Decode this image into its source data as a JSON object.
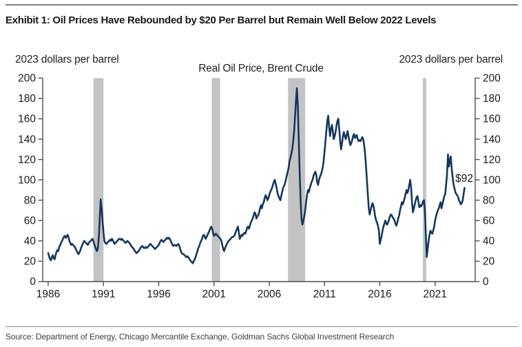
{
  "header": {
    "title": "Exhibit 1: Oil Prices Have Rebounded by $20 Per Barrel but Remain Well Below 2022 Levels"
  },
  "chart": {
    "title": "Real Oil Price, Brent Crude",
    "left_axis_title": "2023 dollars per barrel",
    "right_axis_title": "2023 dollars per barrel",
    "end_annotation": "$92"
  },
  "footer": {
    "source": "Source: Department of Energy, Chicago Mercantile Exchange, Goldman Sachs Global Investment Research"
  },
  "chart_data": {
    "type": "line",
    "title": "Real Oil Price, Brent Crude",
    "xlabel": "",
    "ylabel": "2023 dollars per barrel",
    "ylim": [
      0,
      200
    ],
    "ytick_step": 20,
    "xticks": [
      1986,
      1991,
      1996,
      2001,
      2006,
      2011,
      2016,
      2021
    ],
    "x_start_year": 1986,
    "x_step_months": 1,
    "line_color": "#14375c",
    "band_color": "#c3c3c3",
    "axis_color": "#4d4d4d",
    "tick_label_color": "#1a1a1a",
    "recession_bands": [
      [
        1990.1,
        1991.0
      ],
      [
        2000.8,
        2001.55
      ],
      [
        2007.7,
        2009.25
      ],
      [
        2019.9,
        2020.2
      ]
    ],
    "end_label": {
      "text": "$92",
      "value": 92
    },
    "values": [
      28,
      25,
      22,
      21,
      24,
      26,
      23,
      22,
      26,
      29,
      31,
      30,
      34,
      36,
      38,
      40,
      42,
      44,
      45,
      43,
      44,
      46,
      44,
      40,
      38,
      36,
      37,
      36,
      35,
      34,
      32,
      30,
      28,
      27,
      29,
      31,
      34,
      36,
      38,
      40,
      39,
      38,
      37,
      36,
      38,
      39,
      40,
      41,
      42,
      40,
      37,
      34,
      32,
      30,
      33,
      45,
      62,
      81,
      72,
      60,
      48,
      40,
      38,
      37,
      38,
      39,
      40,
      41,
      40,
      42,
      41,
      39,
      37,
      38,
      39,
      40,
      41,
      42,
      42,
      41,
      42,
      41,
      40,
      39,
      38,
      39,
      40,
      39,
      38,
      37,
      35,
      34,
      33,
      32,
      30,
      29,
      28,
      29,
      30,
      31,
      33,
      34,
      35,
      34,
      33,
      33,
      34,
      33,
      34,
      35,
      36,
      37,
      36,
      35,
      34,
      33,
      32,
      33,
      34,
      35,
      36,
      38,
      40,
      41,
      40,
      39,
      40,
      41,
      42,
      43,
      42,
      43,
      42,
      40,
      38,
      36,
      35,
      36,
      36,
      35,
      36,
      37,
      36,
      33,
      30,
      28,
      27,
      27,
      26,
      25,
      24,
      25,
      24,
      23,
      21,
      20,
      19,
      18,
      20,
      22,
      24,
      27,
      30,
      33,
      35,
      38,
      40,
      42,
      45,
      46,
      44,
      42,
      44,
      46,
      48,
      50,
      52,
      54,
      52,
      48,
      45,
      46,
      47,
      46,
      45,
      44,
      43,
      42,
      40,
      36,
      32,
      30,
      33,
      35,
      37,
      39,
      40,
      41,
      42,
      43,
      44,
      44,
      45,
      47,
      50,
      52,
      54,
      48,
      42,
      44,
      46,
      45,
      47,
      48,
      47,
      50,
      53,
      54,
      52,
      55,
      58,
      60,
      62,
      65,
      68,
      67,
      62,
      64,
      65,
      68,
      72,
      75,
      72,
      76,
      78,
      82,
      85,
      83,
      80,
      82,
      85,
      88,
      90,
      92,
      95,
      98,
      100,
      96,
      92,
      87,
      84,
      82,
      80,
      84,
      88,
      92,
      94,
      96,
      100,
      104,
      108,
      112,
      118,
      122,
      126,
      130,
      138,
      148,
      162,
      178,
      190,
      172,
      140,
      108,
      80,
      62,
      56,
      60,
      64,
      70,
      78,
      85,
      90,
      88,
      92,
      95,
      98,
      100,
      104,
      106,
      108,
      105,
      98,
      95,
      100,
      103,
      105,
      108,
      112,
      118,
      128,
      138,
      148,
      158,
      163,
      152,
      143,
      150,
      154,
      148,
      140,
      143,
      147,
      153,
      158,
      160,
      150,
      138,
      130,
      136,
      143,
      147,
      143,
      140,
      144,
      148,
      143,
      138,
      134,
      136,
      139,
      143,
      145,
      141,
      143,
      144,
      140,
      138,
      139,
      138,
      140,
      142,
      140,
      134,
      126,
      114,
      100,
      86,
      72,
      66,
      70,
      74,
      77,
      75,
      70,
      64,
      60,
      58,
      55,
      50,
      37,
      41,
      45,
      50,
      54,
      57,
      60,
      57,
      56,
      58,
      61,
      64,
      66,
      65,
      63,
      62,
      60,
      57,
      55,
      58,
      62,
      65,
      70,
      74,
      78,
      76,
      79,
      82,
      86,
      90,
      87,
      90,
      95,
      100,
      92,
      78,
      68,
      72,
      76,
      80,
      83,
      84,
      78,
      73,
      75,
      74,
      76,
      79,
      80,
      70,
      45,
      24,
      32,
      40,
      46,
      50,
      48,
      47,
      50,
      54,
      60,
      64,
      67,
      70,
      72,
      75,
      78,
      72,
      76,
      80,
      84,
      86,
      95,
      105,
      125,
      113,
      118,
      123,
      112,
      103,
      96,
      92,
      88,
      86,
      85,
      83,
      80,
      78,
      76,
      77,
      80,
      86,
      92
    ]
  }
}
